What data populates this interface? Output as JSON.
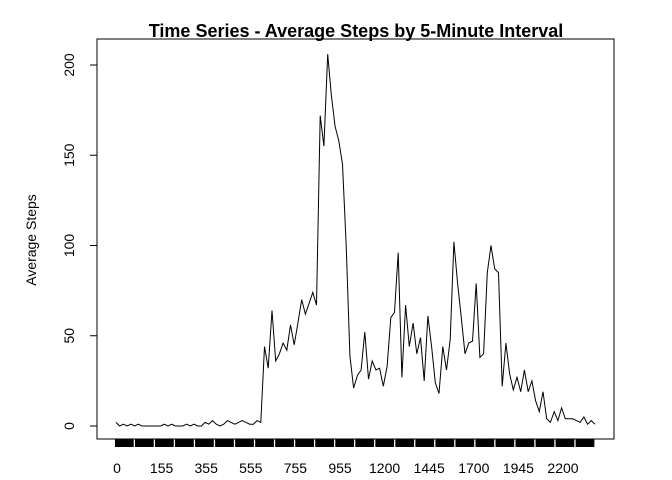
{
  "chart_data": {
    "type": "line",
    "title": "Time Series - Average Steps by 5-Minute Interval",
    "xlabel": "",
    "ylabel": "Average Steps",
    "xlim": [
      0,
      2355
    ],
    "ylim": [
      0,
      206
    ],
    "y_ticks": [
      0,
      50,
      100,
      150,
      200
    ],
    "x_tick_labels": [
      "0",
      "155",
      "355",
      "555",
      "755",
      "955",
      "1200",
      "1445",
      "1700",
      "1945",
      "2200"
    ],
    "line_color": "#000000",
    "grid": false,
    "x": [
      0,
      5,
      10,
      15,
      20,
      25,
      30,
      35,
      40,
      45,
      50,
      55,
      100,
      110,
      120,
      130,
      140,
      150,
      200,
      230,
      300,
      330,
      350,
      400,
      430,
      445,
      450,
      455,
      500,
      505,
      510,
      515,
      520,
      525,
      530,
      535,
      540,
      545,
      550,
      555,
      600,
      615,
      630,
      635,
      640,
      650,
      700,
      715,
      730,
      735,
      745,
      750,
      755,
      800,
      805,
      810,
      815,
      820,
      825,
      830,
      835,
      840,
      850,
      900,
      905,
      910,
      915,
      930,
      945,
      950,
      955,
      1000,
      1015,
      1030,
      1045,
      1100,
      1115,
      1130,
      1145,
      1200,
      1205,
      1210,
      1215,
      1230,
      1245,
      1300,
      1315,
      1330,
      1345,
      1400,
      1415,
      1430,
      1445,
      1500,
      1515,
      1530,
      1545,
      1600,
      1615,
      1630,
      1645,
      1700,
      1715,
      1730,
      1745,
      1800,
      1815,
      1830,
      1845,
      1900,
      1915,
      1930,
      1945,
      2000,
      2015,
      2030,
      2045,
      2100,
      2115,
      2130,
      2145,
      2200,
      2215,
      2230,
      2245,
      2300,
      2315,
      2330,
      2345,
      2355
    ],
    "values": [
      2,
      0,
      1,
      0,
      1,
      0,
      1,
      0,
      0,
      0,
      0,
      0,
      0,
      1,
      0,
      1,
      0,
      0,
      0,
      1,
      0,
      1,
      0,
      0,
      2,
      1,
      3,
      1,
      0,
      1,
      3,
      2,
      1,
      2,
      3,
      2,
      1,
      1,
      3,
      2,
      44,
      32,
      64,
      36,
      40,
      46,
      42,
      56,
      45,
      57,
      70,
      62,
      68,
      74,
      67,
      172,
      155,
      206,
      183,
      166,
      158,
      145,
      100,
      39,
      21,
      28,
      31,
      52,
      26,
      36,
      31,
      32,
      22,
      33,
      60,
      63,
      96,
      27,
      67,
      44,
      57,
      40,
      49,
      25,
      61,
      44,
      24,
      18,
      44,
      31,
      48,
      102,
      79,
      60,
      40,
      46,
      47,
      79,
      38,
      40,
      85,
      100,
      87,
      85,
      22,
      46,
      29,
      20,
      27,
      19,
      31,
      19,
      25,
      14,
      8,
      19,
      4,
      2,
      8,
      3,
      10,
      4,
      4,
      4,
      3,
      2,
      5,
      1,
      3,
      1
    ]
  }
}
